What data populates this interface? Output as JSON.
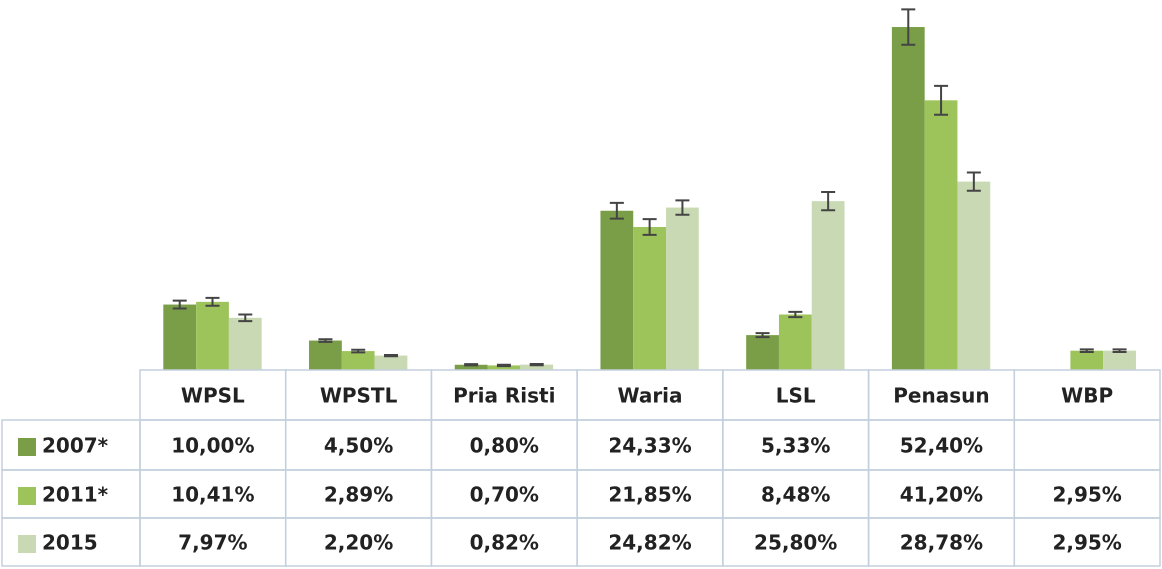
{
  "chart_data": {
    "type": "bar",
    "categories": [
      "WPSL",
      "WPSTL",
      "Pria Risti",
      "Waria",
      "LSL",
      "Penasun",
      "WBP"
    ],
    "series": [
      {
        "name": "2007*",
        "color": "#7a9e48",
        "values": [
          10.0,
          4.5,
          0.8,
          24.33,
          5.33,
          52.4,
          null
        ],
        "value_labels": [
          "10,00%",
          "4,50%",
          "0,80%",
          "24,33%",
          "5,33%",
          "52,40%",
          null
        ],
        "errors": [
          0.6,
          0.2,
          0.1,
          1.2,
          0.3,
          2.7,
          null
        ]
      },
      {
        "name": "2011*",
        "color": "#9dc35b",
        "values": [
          10.41,
          2.89,
          0.7,
          21.85,
          8.48,
          41.2,
          2.95
        ],
        "value_labels": [
          "10,41%",
          "2,89%",
          "0,70%",
          "21,85%",
          "8,48%",
          "41,20%",
          "2,95%"
        ],
        "errors": [
          0.6,
          0.2,
          0.1,
          1.2,
          0.4,
          2.2,
          0.2
        ]
      },
      {
        "name": "2015",
        "color": "#c9d9b3",
        "values": [
          7.97,
          2.2,
          0.82,
          24.82,
          25.8,
          28.78,
          2.95
        ],
        "value_labels": [
          "7,97%",
          "2,20%",
          "0,82%",
          "24,82%",
          "25,80%",
          "28,78%",
          "2,95%"
        ],
        "errors": [
          0.5,
          0.1,
          0.1,
          1.1,
          1.4,
          1.4,
          0.2
        ]
      }
    ],
    "ylim": [
      0,
      55
    ],
    "grid": false
  }
}
